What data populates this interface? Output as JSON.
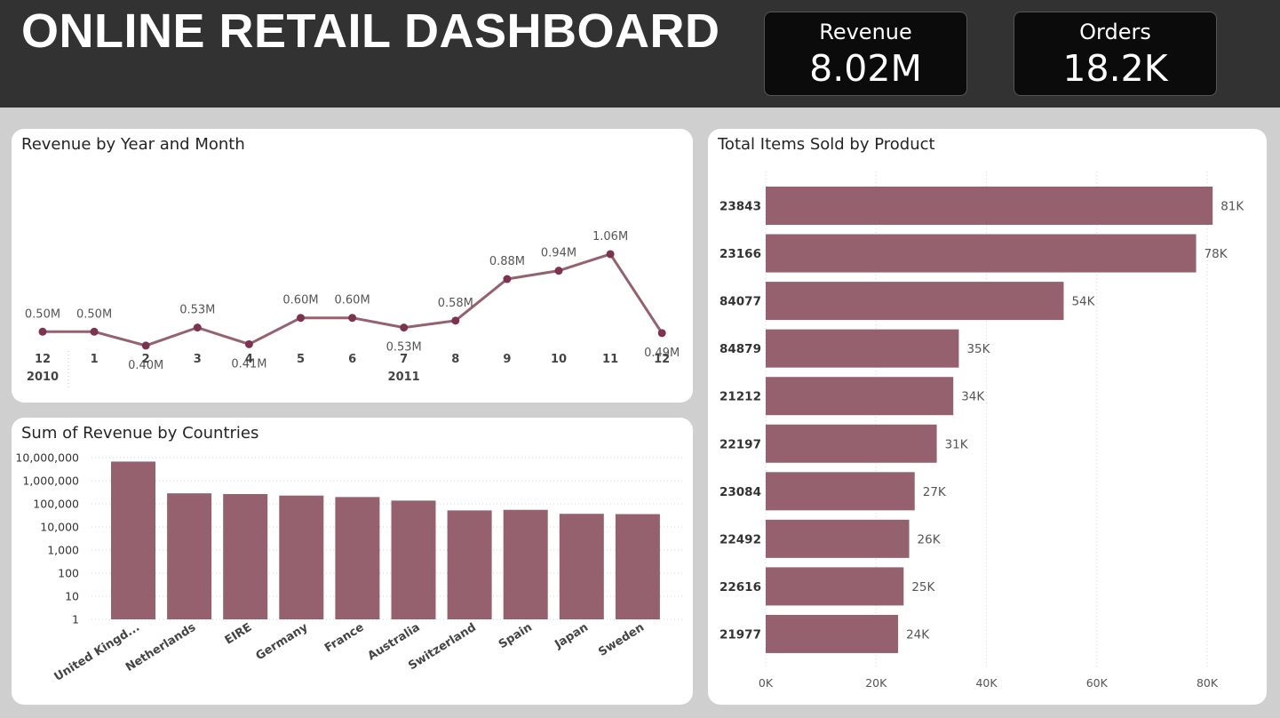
{
  "header": {
    "title": "ONLINE RETAIL DASHBOARD",
    "kpis": [
      {
        "label": "Revenue",
        "value": "8.02M"
      },
      {
        "label": "Orders",
        "value": "18.2K"
      }
    ]
  },
  "colors": {
    "bar": "#95616f",
    "line": "#95616f",
    "marker": "#7b3350",
    "header_bg": "#323232",
    "page_bg": "#cfcfcf",
    "card_bg": "#ffffff"
  },
  "chart_data": [
    {
      "type": "line",
      "title": "Revenue by Year and Month",
      "x": [
        "12",
        "1",
        "2",
        "3",
        "4",
        "5",
        "6",
        "7",
        "8",
        "9",
        "10",
        "11",
        "12"
      ],
      "x_groups": [
        {
          "label": "2010",
          "span": 1
        },
        {
          "label": "2011",
          "span": 12
        }
      ],
      "values": [
        0.5,
        0.5,
        0.4,
        0.53,
        0.41,
        0.6,
        0.6,
        0.53,
        0.58,
        0.88,
        0.94,
        1.06,
        0.49
      ],
      "data_labels": [
        "0.50M",
        "0.50M",
        "0.40M",
        "0.53M",
        "0.41M",
        "0.60M",
        "0.60M",
        "0.53M",
        "0.58M",
        "0.88M",
        "0.94M",
        "1.06M",
        "0.49M"
      ],
      "unit": "M",
      "grid": false
    },
    {
      "type": "bar",
      "title": "Sum of Revenue by Countries",
      "categories": [
        "United Kingd...",
        "Netherlands",
        "EIRE",
        "Germany",
        "France",
        "Australia",
        "Switzerland",
        "Spain",
        "Japan",
        "Sweden"
      ],
      "values": [
        6750000,
        285000,
        265000,
        228000,
        197000,
        138000,
        52000,
        55000,
        37000,
        36000
      ],
      "yscale": "log",
      "ylim": [
        1,
        10000000
      ],
      "yticks": [
        "1",
        "10",
        "100",
        "1,000",
        "10,000",
        "100,000",
        "1,000,000",
        "10,000,000"
      ],
      "grid": true
    },
    {
      "type": "bar",
      "orientation": "horizontal",
      "title": "Total Items Sold by Product",
      "categories": [
        "23843",
        "23166",
        "84077",
        "84879",
        "21212",
        "22197",
        "23084",
        "22492",
        "22616",
        "21977"
      ],
      "values": [
        81000,
        78000,
        54000,
        35000,
        34000,
        31000,
        27000,
        26000,
        25000,
        24000
      ],
      "data_labels": [
        "81K",
        "78K",
        "54K",
        "35K",
        "34K",
        "31K",
        "27K",
        "26K",
        "25K",
        "24K"
      ],
      "xlim": [
        0,
        80000
      ],
      "xticks": [
        "0K",
        "20K",
        "40K",
        "60K",
        "80K"
      ],
      "grid": true
    }
  ]
}
